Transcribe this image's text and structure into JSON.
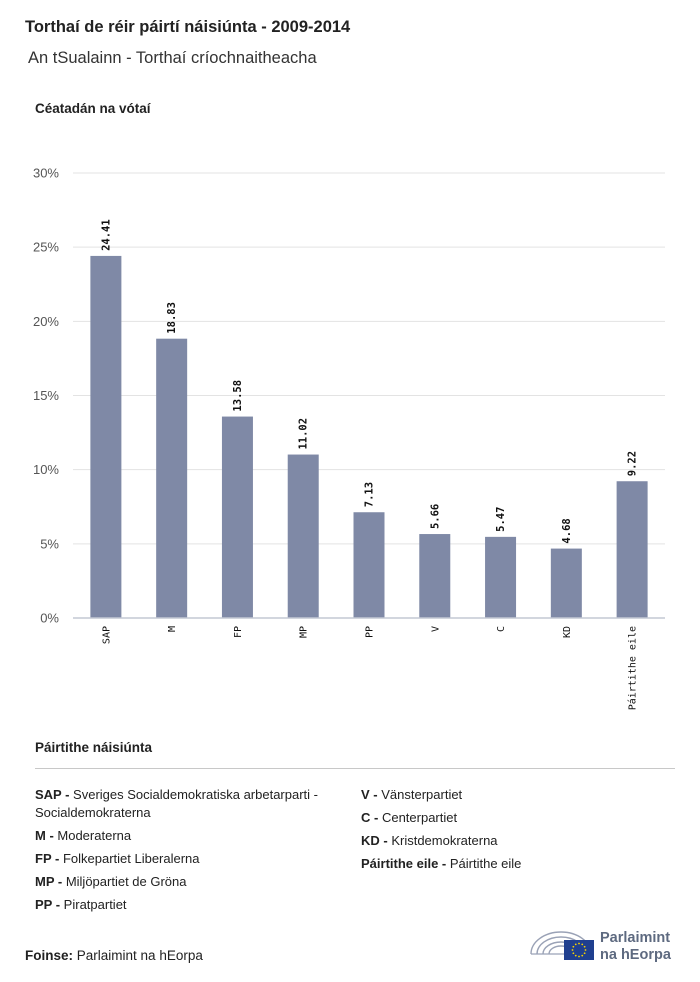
{
  "header": {
    "title": "Torthaí de réir páirtí náisiúnta - 2009-2014",
    "subtitle": "An tSualainn - Torthaí críochnaitheacha"
  },
  "chart_data": {
    "type": "bar",
    "title": "Torthaí de réir páirtí náisiúnta - 2009-2014",
    "subtitle": "An tSualainn - Torthaí críochnaitheacha",
    "ylabel": "Céatadán na vótaí",
    "xlabel": "",
    "ylim": [
      0,
      30
    ],
    "yticks": [
      0,
      5,
      10,
      15,
      20,
      25,
      30
    ],
    "ytick_labels": [
      "0%",
      "5%",
      "10%",
      "15%",
      "20%",
      "25%",
      "30%"
    ],
    "categories": [
      "SAP",
      "M",
      "FP",
      "MP",
      "PP",
      "V",
      "C",
      "KD",
      "Páirtithe eile"
    ],
    "values": [
      24.41,
      18.83,
      13.58,
      11.02,
      7.13,
      5.66,
      5.47,
      4.68,
      9.22
    ],
    "data_labels": [
      "24.41",
      "18.83",
      "13.58",
      "11.02",
      "7.13",
      "5.66",
      "5.47",
      "4.68",
      "9.22"
    ],
    "bar_color": "#7f89a6",
    "grid": true
  },
  "legend": {
    "title": "Páirtithe náisiúnta",
    "left": [
      {
        "abbr": "SAP -",
        "name": "Sveriges Socialdemokratiska arbetarparti - Socialdemokraterna"
      },
      {
        "abbr": "M -",
        "name": "Moderaterna"
      },
      {
        "abbr": "FP -",
        "name": "Folkepartiet Liberalerna"
      },
      {
        "abbr": "MP -",
        "name": "Miljöpartiet de Gröna"
      },
      {
        "abbr": "PP -",
        "name": "Piratpartiet"
      }
    ],
    "right": [
      {
        "abbr": "V -",
        "name": "Vänsterpartiet"
      },
      {
        "abbr": "C -",
        "name": "Centerpartiet"
      },
      {
        "abbr": "KD -",
        "name": "Kristdemokraterna"
      },
      {
        "abbr": "Páirtithe eile -",
        "name": "Páirtithe eile"
      }
    ]
  },
  "footer": {
    "source_label": "Foinse:",
    "source_value": "Parlaimint na hEorpa",
    "logo_line1": "Parlaimint",
    "logo_line2": "na hEorpa"
  },
  "colors": {
    "bar": "#7f89a6",
    "grid": "#e3e3e3",
    "axis": "#c4c8d4",
    "logo": "#5e6a80",
    "eu_flag": "#1f3f8f",
    "eu_stars": "#f5d200"
  }
}
